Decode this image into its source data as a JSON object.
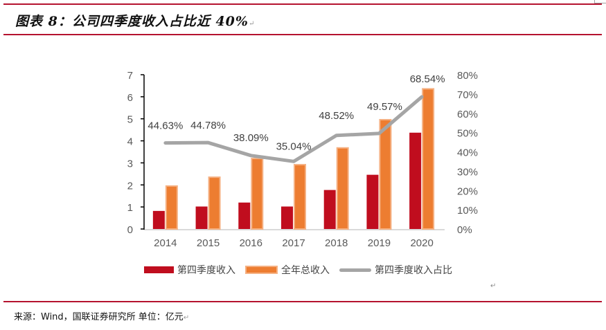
{
  "header": {
    "title": "图表 8：公司四季度收入占比近 40%",
    "return_mark": "↵"
  },
  "footer": {
    "source": "来源：Wind，国联证券研究所  单位：亿元",
    "return_mark": "↵"
  },
  "colors": {
    "rule": "#b5122e",
    "q4_revenue": "#c00d1e",
    "annual_revenue": "#ed7d31",
    "annual_revenue_border": "#f5b183",
    "q4_share": "#a5a5a5",
    "axis_text": "#595959"
  },
  "chart_data": {
    "type": "bar",
    "title": "公司四季度收入占比近 40%",
    "categories": [
      "2014",
      "2015",
      "2016",
      "2017",
      "2018",
      "2019",
      "2020"
    ],
    "series": [
      {
        "name": "第四季度收入",
        "type": "bar",
        "axis": "left",
        "values": [
          0.82,
          1.02,
          1.2,
          1.02,
          1.77,
          2.46,
          4.37
        ]
      },
      {
        "name": "全年总收入",
        "type": "bar",
        "axis": "left",
        "values": [
          1.95,
          2.35,
          3.2,
          2.92,
          3.68,
          4.96,
          6.36
        ]
      },
      {
        "name": "第四季度收入占比",
        "type": "line",
        "axis": "right",
        "values": [
          44.63,
          44.78,
          38.09,
          35.04,
          48.52,
          49.57,
          68.54
        ],
        "labels": [
          "44.63%",
          "44.78%",
          "38.09%",
          "35.04%",
          "48.52%",
          "49.57%",
          "68.54%"
        ]
      }
    ],
    "y_left": {
      "range": [
        0,
        7
      ],
      "ticks": [
        "0",
        "1",
        "2",
        "3",
        "4",
        "5",
        "6",
        "7"
      ]
    },
    "y_right": {
      "range": [
        0,
        80
      ],
      "ticks": [
        "0%",
        "10%",
        "20%",
        "30%",
        "40%",
        "50%",
        "60%",
        "70%",
        "80%"
      ]
    },
    "xlabel": "",
    "ylabel": "",
    "grid": false,
    "legend_position": "bottom"
  }
}
